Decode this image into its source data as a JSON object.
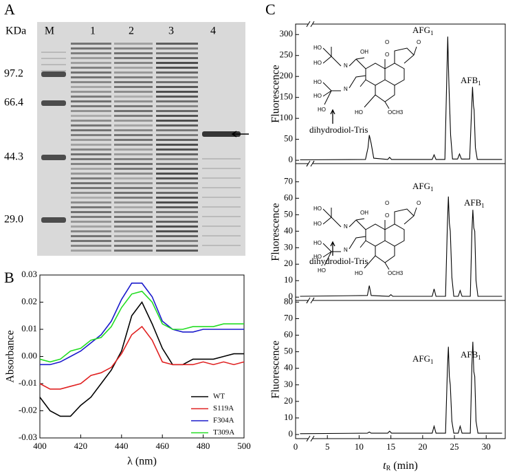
{
  "panel_labels": [
    "A",
    "B",
    "C"
  ],
  "gel": {
    "unit_label": "KDa",
    "lanes": [
      "M",
      "1",
      "2",
      "3",
      "4"
    ],
    "markers": [
      "97.2",
      "66.4",
      "44.3",
      "29.0"
    ]
  },
  "structure_atoms": [
    "HO",
    "HO",
    "N",
    "OH",
    "O",
    "O",
    "O",
    "HO",
    "HO",
    "HO",
    "N",
    "HO",
    "OCH3"
  ],
  "chart_data": [
    {
      "type": "line",
      "x_label": "λ (nm)",
      "y_label": "Absorbance",
      "x": [
        400,
        405,
        410,
        415,
        420,
        425,
        430,
        435,
        440,
        445,
        450,
        455,
        460,
        465,
        470,
        475,
        480,
        485,
        490,
        495,
        500
      ],
      "xlim": [
        400,
        500
      ],
      "xticks": [
        400,
        420,
        440,
        460,
        480,
        500
      ],
      "ylim": [
        -0.03,
        0.03
      ],
      "yticks": [
        -0.03,
        -0.02,
        -0.01,
        {
          "value": 0,
          "label": "0.00"
        },
        0.01,
        0.02,
        0.03
      ],
      "legend": "lower right",
      "series": [
        {
          "name": "WT",
          "color": "#000000",
          "values": [
            -0.015,
            -0.02,
            -0.022,
            -0.022,
            -0.018,
            -0.015,
            -0.01,
            -0.005,
            0.002,
            0.015,
            0.02,
            0.012,
            0.003,
            -0.003,
            -0.003,
            -0.001,
            -0.001,
            -0.001,
            0,
            0.001,
            0.001
          ]
        },
        {
          "name": "S119A",
          "color": "#e02020",
          "values": [
            -0.01,
            -0.012,
            -0.012,
            -0.011,
            -0.01,
            -0.007,
            -0.006,
            -0.004,
            0.001,
            0.008,
            0.011,
            0.006,
            -0.002,
            -0.003,
            -0.003,
            -0.003,
            -0.002,
            -0.003,
            -0.002,
            -0.003,
            -0.002
          ]
        },
        {
          "name": "F304A",
          "color": "#1a1acc",
          "values": [
            -0.003,
            -0.003,
            -0.002,
            0,
            0.002,
            0.005,
            0.008,
            0.013,
            0.021,
            0.027,
            0.027,
            0.022,
            0.013,
            0.01,
            0.009,
            0.009,
            0.01,
            0.01,
            0.01,
            0.01,
            0.01
          ]
        },
        {
          "name": "T309A",
          "color": "#22dd22",
          "values": [
            -0.001,
            -0.002,
            -0.001,
            0.002,
            0.003,
            0.006,
            0.007,
            0.011,
            0.018,
            0.023,
            0.024,
            0.02,
            0.012,
            0.01,
            0.01,
            0.011,
            0.011,
            0.011,
            0.012,
            0.012,
            0.012
          ]
        }
      ]
    },
    {
      "type": "line",
      "y_label": "Fluorescence",
      "xlim": [
        0,
        33
      ],
      "ylim": [
        -8,
        325
      ],
      "yticks": [
        0,
        50,
        100,
        150,
        200,
        250,
        300
      ],
      "annotations": [
        {
          "text": "AFG",
          "subscript": "1"
        },
        {
          "text": "AFB",
          "subscript": "1"
        },
        "dihydrodiol-Tris"
      ],
      "series": [
        {
          "color": "#000000",
          "x": [
            0.7,
            11.0,
            11.4,
            11.6,
            11.9,
            12.3,
            14.5,
            14.8,
            15.1,
            21.5,
            21.8,
            22.1,
            23.5,
            23.8,
            23.95,
            24.1,
            24.2,
            24.4,
            24.7,
            25.5,
            25.8,
            26.1,
            27.4,
            27.7,
            27.85,
            28.0,
            28.1,
            28.3,
            28.6,
            32.5
          ],
          "values": [
            1,
            2,
            30,
            60,
            40,
            5,
            2,
            7,
            2,
            2,
            13,
            2,
            2,
            200,
            295,
            200,
            150,
            60,
            3,
            3,
            15,
            3,
            3,
            120,
            175,
            130,
            120,
            30,
            2,
            2
          ]
        }
      ]
    },
    {
      "type": "line",
      "y_label": "Fluorescence",
      "xlim": [
        0,
        33
      ],
      "ylim": [
        -2,
        81
      ],
      "yticks": [
        0,
        10,
        20,
        30,
        40,
        50,
        60,
        70
      ],
      "annotations": [
        {
          "text": "AFG",
          "subscript": "1"
        },
        {
          "text": "AFB",
          "subscript": "1"
        },
        "dihydrodiol-Tris"
      ],
      "series": [
        {
          "color": "#000000",
          "x": [
            0.7,
            11.3,
            11.6,
            11.9,
            14.7,
            15.0,
            15.3,
            21.5,
            21.8,
            22.1,
            23.6,
            23.9,
            24.05,
            24.2,
            24.35,
            24.6,
            24.9,
            25.6,
            25.9,
            26.2,
            27.5,
            27.75,
            27.9,
            28.05,
            28.2,
            28.4,
            28.7,
            32.5
          ],
          "values": [
            0.5,
            1,
            7,
            1,
            0.5,
            1.5,
            0.5,
            0.5,
            5,
            0.5,
            0.5,
            45,
            61,
            45,
            40,
            12,
            0.5,
            0.5,
            4,
            0.5,
            0.5,
            40,
            53,
            42,
            40,
            10,
            0.5,
            0.5
          ]
        }
      ]
    },
    {
      "type": "line",
      "y_label": "Fluorescence",
      "x_label": {
        "symbol": "t",
        "subscript": "R",
        "unit": "(min)"
      },
      "xlim": [
        0,
        33
      ],
      "xticks": [
        0,
        5,
        10,
        15,
        20,
        25,
        30
      ],
      "ylim": [
        -2.5,
        81
      ],
      "yticks": [
        0,
        10,
        20,
        30,
        40,
        50,
        60,
        70,
        80
      ],
      "annotations": [
        {
          "text": "AFG",
          "subscript": "1"
        },
        {
          "text": "AFB",
          "subscript": "1"
        }
      ],
      "series": [
        {
          "color": "#000000",
          "x": [
            0.7,
            11.3,
            11.6,
            11.9,
            14.5,
            14.8,
            15.1,
            21.5,
            21.8,
            22.1,
            23.6,
            23.9,
            24.05,
            24.2,
            24.35,
            24.6,
            24.9,
            25.6,
            25.9,
            26.2,
            27.5,
            27.75,
            27.9,
            28.05,
            28.2,
            28.4,
            28.7,
            32.5
          ],
          "values": [
            0.5,
            0.8,
            1.5,
            0.8,
            0.8,
            2,
            0.8,
            0.8,
            5,
            0.8,
            0.8,
            40,
            53,
            35,
            30,
            8,
            0.8,
            0.8,
            5,
            0.8,
            0.8,
            42,
            56,
            38,
            35,
            8,
            0.8,
            0.8
          ]
        }
      ]
    }
  ]
}
